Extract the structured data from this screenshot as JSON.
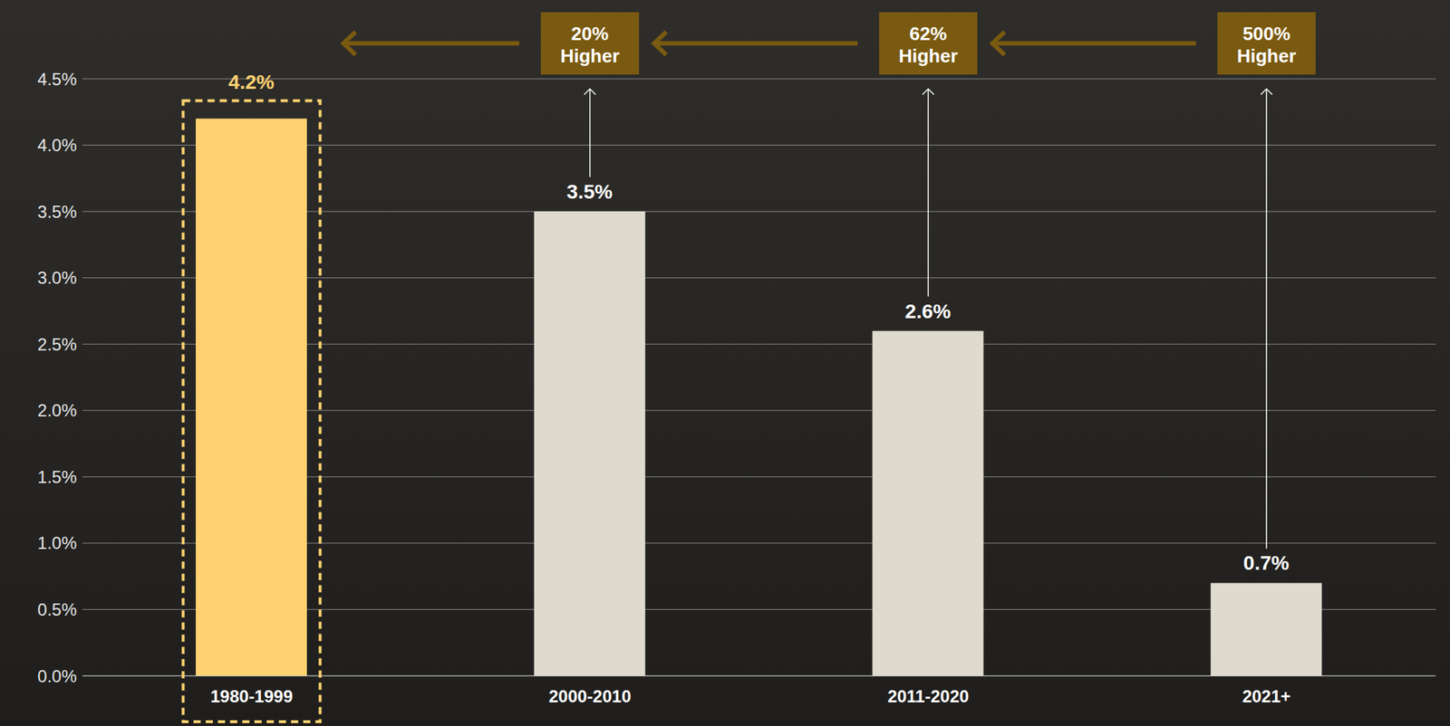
{
  "chart_data": {
    "type": "bar",
    "categories": [
      "1980-1999",
      "2000-2010",
      "2011-2020",
      "2021+"
    ],
    "values": [
      4.2,
      3.5,
      2.6,
      0.7
    ],
    "value_labels": [
      "4.2%",
      "3.5%",
      "2.6%",
      "0.7%"
    ],
    "colors": [
      "#FFD170",
      "#DEDACE",
      "#DEDACE",
      "#DEDACE"
    ],
    "ylim": [
      0,
      4.5
    ],
    "yticks": [
      {
        "value": 0,
        "label": "0.0%"
      },
      {
        "value": 0.5,
        "label": "0.5%"
      },
      {
        "value": 1,
        "label": "1.0%"
      },
      {
        "value": 1.5,
        "label": "1.5%"
      },
      {
        "value": 2,
        "label": "2.0%"
      },
      {
        "value": 2.5,
        "label": "2.5%"
      },
      {
        "value": 3,
        "label": "3.0%"
      },
      {
        "value": 3.5,
        "label": "3.5%"
      },
      {
        "value": 4,
        "label": "4.0%"
      },
      {
        "value": 4.5,
        "label": "4.5%"
      }
    ],
    "grid": true,
    "data_labels": true,
    "annotations": [
      {
        "category": "2000-2010",
        "text": "20% Higher"
      },
      {
        "category": "2011-2020",
        "text": "62% Higher"
      },
      {
        "category": "2021+",
        "text": "500% Higher"
      }
    ]
  }
}
